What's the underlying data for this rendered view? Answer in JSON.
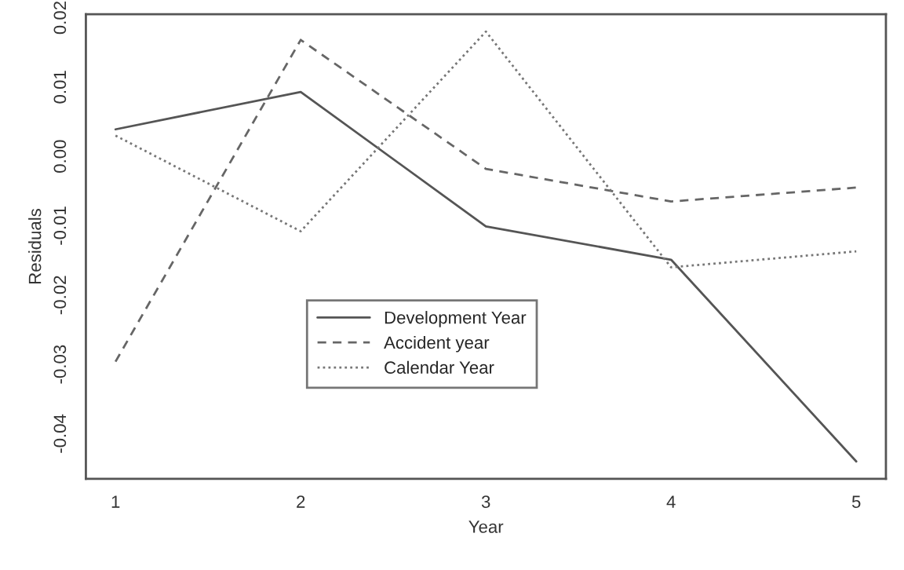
{
  "chart_data": {
    "type": "line",
    "xlabel": "Year",
    "ylabel": "Residuals",
    "x": [
      1,
      2,
      3,
      4,
      5
    ],
    "series": [
      {
        "name": "Development Year",
        "color": "#555555",
        "line_style": "solid",
        "values": [
          0.0039,
          0.0093,
          -0.0101,
          -0.0149,
          -0.044
        ]
      },
      {
        "name": "Accident year",
        "color": "#666666",
        "line_style": "dashed",
        "values": [
          -0.0296,
          0.0168,
          -0.0018,
          -0.0065,
          -0.0045
        ]
      },
      {
        "name": "Calendar Year",
        "color": "#777777",
        "line_style": "dotted",
        "values": [
          0.003,
          -0.0108,
          0.018,
          -0.016,
          -0.0137
        ]
      }
    ],
    "xlim": [
      0.84,
      5.16
    ],
    "xticks": [
      1,
      2,
      3,
      4,
      5
    ],
    "ylim": [
      -0.0465,
      0.0205
    ],
    "yticks": [
      {
        "value": -0.04,
        "label": "-0.04"
      },
      {
        "value": -0.03,
        "label": "-0.03"
      },
      {
        "value": -0.02,
        "label": "-0.02"
      },
      {
        "value": -0.01,
        "label": "-0.01"
      },
      {
        "value": 0,
        "label": "0.00"
      },
      {
        "value": 0.01,
        "label": "0.01"
      },
      {
        "value": 0.02,
        "label": "0.02"
      }
    ],
    "grid": false,
    "legend": "center",
    "marker": "none"
  }
}
